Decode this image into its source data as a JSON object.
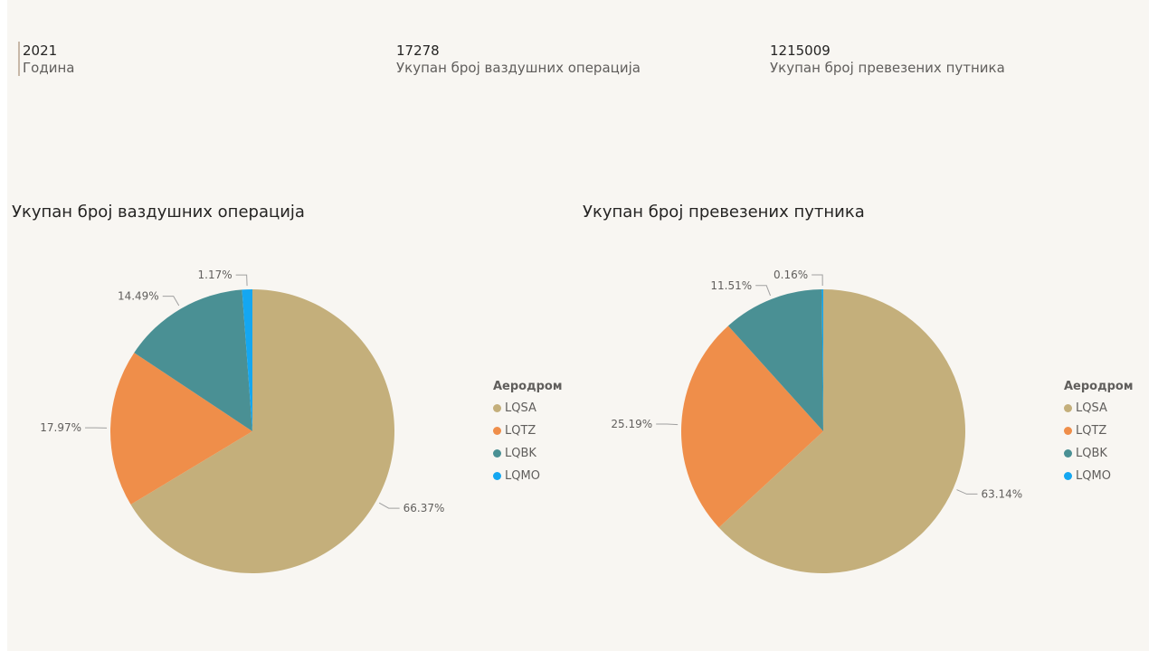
{
  "kpis": [
    {
      "value": "2021",
      "label": "Година"
    },
    {
      "value": "17278",
      "label": "Укупан број ваздушних операција"
    },
    {
      "value": "1215009",
      "label": "Укупан број превезених путника"
    }
  ],
  "legend_title": "Аеродром",
  "colors": {
    "LQSA": "#c4af7b",
    "LQTZ": "#ef8e4a",
    "LQBK": "#4a9094",
    "LQMO": "#14a7f1"
  },
  "chart_data": [
    {
      "type": "pie",
      "title": "Укупан број ваздушних операција",
      "legend_title": "Аеродром",
      "categories": [
        "LQSA",
        "LQTZ",
        "LQBK",
        "LQMO"
      ],
      "values": [
        66.37,
        17.97,
        14.49,
        1.17
      ],
      "data_labels": [
        "66.37%",
        "17.97%",
        "14.49%",
        "1.17%"
      ],
      "legend_position": "right"
    },
    {
      "type": "pie",
      "title": "Укупан број превезених путника",
      "legend_title": "Аеродром",
      "categories": [
        "LQSA",
        "LQTZ",
        "LQBK",
        "LQMO"
      ],
      "values": [
        63.14,
        25.19,
        11.51,
        0.16
      ],
      "data_labels": [
        "63.14%",
        "25.19%",
        "11.51%",
        "0.16%"
      ],
      "legend_position": "right"
    }
  ]
}
